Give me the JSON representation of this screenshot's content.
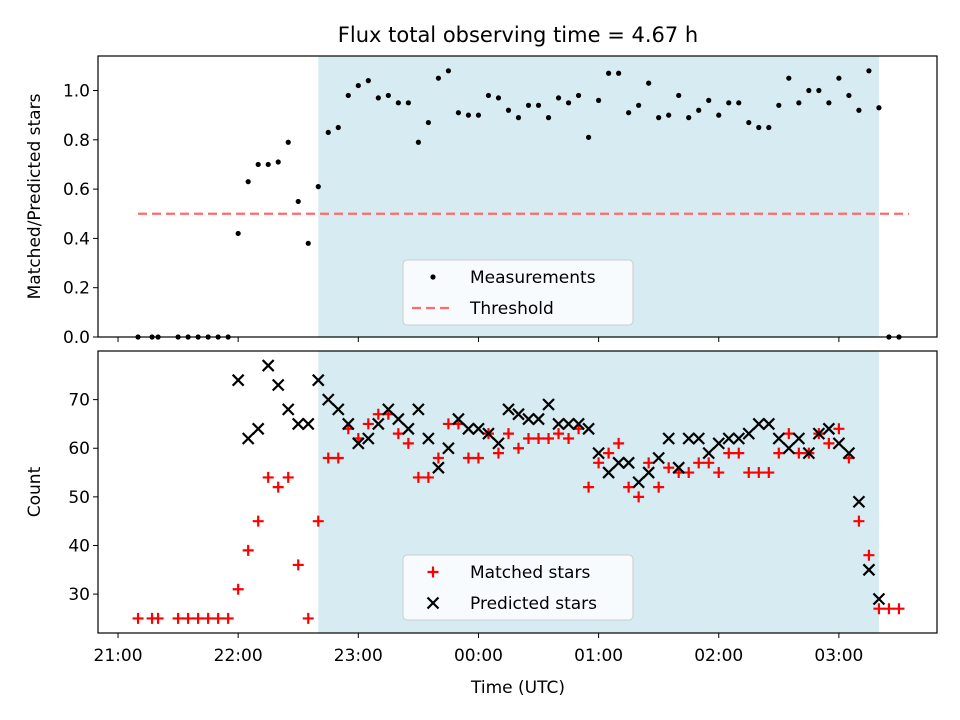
{
  "title": "Flux total observing time = 4.67 h",
  "colors": {
    "window": "#add8e6",
    "measure": "#000000",
    "threshold": "#ff6b6b",
    "matched": "#ff0000",
    "predicted": "#000000"
  },
  "chart_data": [
    {
      "type": "scatter",
      "ylabel": "Matched/Predicted stars",
      "ylim": [
        0,
        1.14
      ],
      "yticks": [
        "0.0",
        "0.2",
        "0.4",
        "0.6",
        "0.8",
        "1.0"
      ],
      "ytick_values": [
        0,
        0.2,
        0.4,
        0.6,
        0.8,
        1.0
      ],
      "observing_window": [
        "22:40",
        "03:20"
      ],
      "threshold": 0.5,
      "legend": {
        "position": "lower center",
        "entries": [
          "Measurements",
          "Threshold"
        ]
      },
      "series": [
        {
          "name": "Measurements",
          "x": [
            "21:10",
            "21:17",
            "21:20",
            "21:30",
            "21:35",
            "21:40",
            "21:45",
            "21:50",
            "21:55",
            "22:00",
            "22:05",
            "22:10",
            "22:15",
            "22:20",
            "22:25",
            "22:30",
            "22:35",
            "22:40",
            "22:45",
            "22:50",
            "22:55",
            "23:00",
            "23:05",
            "23:10",
            "23:15",
            "23:20",
            "23:25",
            "23:30",
            "23:35",
            "23:40",
            "23:45",
            "23:50",
            "23:55",
            "00:00",
            "00:05",
            "00:10",
            "00:15",
            "00:20",
            "00:25",
            "00:30",
            "00:35",
            "00:40",
            "00:45",
            "00:50",
            "00:55",
            "01:00",
            "01:05",
            "01:10",
            "01:15",
            "01:20",
            "01:25",
            "01:30",
            "01:35",
            "01:40",
            "01:45",
            "01:50",
            "01:55",
            "02:00",
            "02:05",
            "02:10",
            "02:15",
            "02:20",
            "02:25",
            "02:30",
            "02:35",
            "02:40",
            "02:45",
            "02:50",
            "02:55",
            "03:00",
            "03:05",
            "03:10",
            "03:15",
            "03:20",
            "03:25",
            "03:30"
          ],
          "y": [
            0.0,
            0.0,
            0.0,
            0.0,
            0.0,
            0.0,
            0.0,
            0.0,
            0.0,
            0.42,
            0.63,
            0.7,
            0.7,
            0.71,
            0.79,
            0.55,
            0.38,
            0.61,
            0.83,
            0.85,
            0.98,
            1.02,
            1.04,
            0.97,
            0.98,
            0.95,
            0.95,
            0.79,
            0.87,
            1.05,
            1.08,
            0.91,
            0.9,
            0.9,
            0.98,
            0.97,
            0.92,
            0.89,
            0.94,
            0.94,
            0.89,
            0.97,
            0.95,
            0.98,
            0.81,
            0.96,
            1.07,
            1.07,
            0.91,
            0.94,
            1.03,
            0.89,
            0.9,
            0.98,
            0.89,
            0.92,
            0.96,
            0.9,
            0.95,
            0.95,
            0.87,
            0.85,
            0.85,
            0.94,
            1.05,
            0.95,
            1.0,
            1.0,
            0.95,
            1.05,
            0.98,
            0.92,
            1.08,
            0.93,
            0.0,
            0.0
          ]
        },
        {
          "name": "Threshold",
          "x": [
            "21:10",
            "03:35"
          ],
          "y": [
            0.5,
            0.5
          ]
        }
      ]
    },
    {
      "type": "scatter",
      "xlabel": "Time (UTC)",
      "ylabel": "Count",
      "ylim": [
        22,
        80
      ],
      "yticks": [
        "30",
        "40",
        "50",
        "60",
        "70"
      ],
      "ytick_values": [
        30,
        40,
        50,
        60,
        70
      ],
      "xticks": [
        "21:00",
        "22:00",
        "23:00",
        "00:00",
        "01:00",
        "02:00",
        "03:00"
      ],
      "xtick_values": [
        "21:00",
        "22:00",
        "23:00",
        "00:00",
        "01:00",
        "02:00",
        "03:00"
      ],
      "xlim": [
        "20:50",
        "03:49"
      ],
      "observing_window": [
        "22:40",
        "03:20"
      ],
      "legend": {
        "position": "lower center",
        "entries": [
          "Matched stars",
          "Predicted stars"
        ]
      },
      "series": [
        {
          "name": "Matched stars",
          "x": [
            "21:10",
            "21:17",
            "21:20",
            "21:30",
            "21:35",
            "21:40",
            "21:45",
            "21:50",
            "21:55",
            "22:00",
            "22:05",
            "22:10",
            "22:15",
            "22:20",
            "22:25",
            "22:30",
            "22:35",
            "22:40",
            "22:45",
            "22:50",
            "22:55",
            "23:00",
            "23:05",
            "23:10",
            "23:15",
            "23:20",
            "23:25",
            "23:30",
            "23:35",
            "23:40",
            "23:45",
            "23:50",
            "23:55",
            "00:00",
            "00:05",
            "00:10",
            "00:15",
            "00:20",
            "00:25",
            "00:30",
            "00:35",
            "00:40",
            "00:45",
            "00:50",
            "00:55",
            "01:00",
            "01:05",
            "01:10",
            "01:15",
            "01:20",
            "01:25",
            "01:30",
            "01:35",
            "01:40",
            "01:45",
            "01:50",
            "01:55",
            "02:00",
            "02:05",
            "02:10",
            "02:15",
            "02:20",
            "02:25",
            "02:30",
            "02:35",
            "02:40",
            "02:45",
            "02:50",
            "02:55",
            "03:00",
            "03:05",
            "03:10",
            "03:15",
            "03:20",
            "03:25",
            "03:30"
          ],
          "y": [
            25,
            25,
            25,
            25,
            25,
            25,
            25,
            25,
            25,
            31,
            39,
            45,
            54,
            52,
            54,
            36,
            25,
            45,
            58,
            58,
            64,
            62,
            65,
            67,
            67,
            63,
            61,
            54,
            54,
            58,
            65,
            65,
            58,
            58,
            63,
            59,
            63,
            60,
            62,
            62,
            62,
            63,
            62,
            64,
            52,
            57,
            59,
            61,
            52,
            50,
            57,
            52,
            56,
            55,
            55,
            57,
            57,
            55,
            59,
            59,
            55,
            55,
            55,
            59,
            63,
            59,
            59,
            63,
            61,
            64,
            58,
            45,
            38,
            27,
            27,
            27
          ]
        },
        {
          "name": "Predicted stars",
          "x": [
            "22:00",
            "22:05",
            "22:10",
            "22:15",
            "22:20",
            "22:25",
            "22:30",
            "22:35",
            "22:40",
            "22:45",
            "22:50",
            "22:55",
            "23:00",
            "23:05",
            "23:10",
            "23:15",
            "23:20",
            "23:25",
            "23:30",
            "23:35",
            "23:40",
            "23:45",
            "23:50",
            "23:55",
            "00:00",
            "00:05",
            "00:10",
            "00:15",
            "00:20",
            "00:25",
            "00:30",
            "00:35",
            "00:40",
            "00:45",
            "00:50",
            "00:55",
            "01:00",
            "01:05",
            "01:10",
            "01:15",
            "01:20",
            "01:25",
            "01:30",
            "01:35",
            "01:40",
            "01:45",
            "01:50",
            "01:55",
            "02:00",
            "02:05",
            "02:10",
            "02:15",
            "02:20",
            "02:25",
            "02:30",
            "02:35",
            "02:40",
            "02:45",
            "02:50",
            "02:55",
            "03:00",
            "03:05",
            "03:10",
            "03:15",
            "03:20"
          ],
          "y": [
            74,
            62,
            64,
            77,
            73,
            68,
            65,
            65,
            74,
            70,
            68,
            65,
            61,
            62,
            65,
            68,
            66,
            64,
            68,
            62,
            56,
            60,
            66,
            64,
            64,
            63,
            61,
            68,
            67,
            66,
            66,
            69,
            65,
            65,
            65,
            64,
            59,
            55,
            57,
            57,
            53,
            55,
            58,
            62,
            56,
            62,
            62,
            59,
            61,
            62,
            62,
            63,
            65,
            65,
            62,
            60,
            62,
            59,
            63,
            64,
            61,
            59,
            49,
            35,
            29
          ]
        }
      ]
    }
  ]
}
